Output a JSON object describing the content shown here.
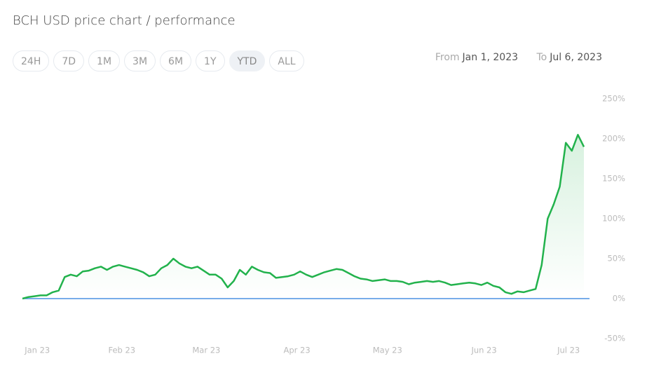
{
  "header": {
    "title": "BCH USD price chart / performance",
    "ranges": [
      "24H",
      "7D",
      "1M",
      "3M",
      "6M",
      "1Y",
      "YTD",
      "ALL"
    ],
    "active_range": "YTD",
    "from_label": "From",
    "from_date": "Jan 1, 2023",
    "to_label": "To",
    "to_date": "Jul 6, 2023"
  },
  "chart_data": {
    "type": "line",
    "color": "#22b24c",
    "baseline_color": "#4a90e2",
    "fill": true,
    "categories": [
      null,
      null,
      "Jan 23",
      null,
      null,
      null,
      null,
      null,
      null,
      null,
      null,
      null,
      null,
      null,
      null,
      null,
      "Feb 23",
      null,
      null,
      null,
      null,
      null,
      null,
      null,
      null,
      null,
      null,
      null,
      null,
      null,
      "Mar 23",
      null,
      null,
      null,
      null,
      null,
      null,
      null,
      null,
      null,
      null,
      null,
      null,
      null,
      null,
      "Apr 23",
      null,
      null,
      null,
      null,
      null,
      null,
      null,
      null,
      null,
      null,
      null,
      null,
      null,
      null,
      "May 23",
      null,
      null,
      null,
      null,
      null,
      null,
      null,
      null,
      null,
      null,
      null,
      null,
      null,
      null,
      null,
      "Jun 23",
      null,
      null,
      null,
      null,
      null,
      null,
      null,
      null,
      null,
      null,
      null,
      null,
      null,
      "Jul 23",
      null,
      null,
      null
    ],
    "values": [
      0,
      2,
      3,
      4,
      4,
      8,
      10,
      27,
      30,
      28,
      34,
      35,
      38,
      40,
      36,
      40,
      42,
      40,
      38,
      36,
      33,
      28,
      30,
      38,
      42,
      50,
      44,
      40,
      38,
      40,
      35,
      30,
      30,
      25,
      14,
      22,
      36,
      30,
      40,
      36,
      33,
      32,
      26,
      27,
      28,
      30,
      34,
      30,
      27,
      30,
      33,
      35,
      37,
      36,
      32,
      28,
      25,
      24,
      22,
      23,
      24,
      22,
      22,
      21,
      18,
      20,
      21,
      22,
      21,
      22,
      20,
      17,
      18,
      19,
      20,
      19,
      17,
      20,
      16,
      14,
      8,
      6,
      9,
      8,
      10,
      12,
      42,
      100,
      118,
      140,
      195,
      185,
      205,
      190
    ],
    "ylim": [
      -50,
      250
    ],
    "yticks": [
      {
        "value": -50,
        "label": "-50%"
      },
      {
        "value": 0,
        "label": "0%"
      },
      {
        "value": 50,
        "label": "50%"
      },
      {
        "value": 100,
        "label": "100%"
      },
      {
        "value": 150,
        "label": "150%"
      },
      {
        "value": 200,
        "label": "200%"
      },
      {
        "value": 250,
        "label": "250%"
      }
    ]
  }
}
